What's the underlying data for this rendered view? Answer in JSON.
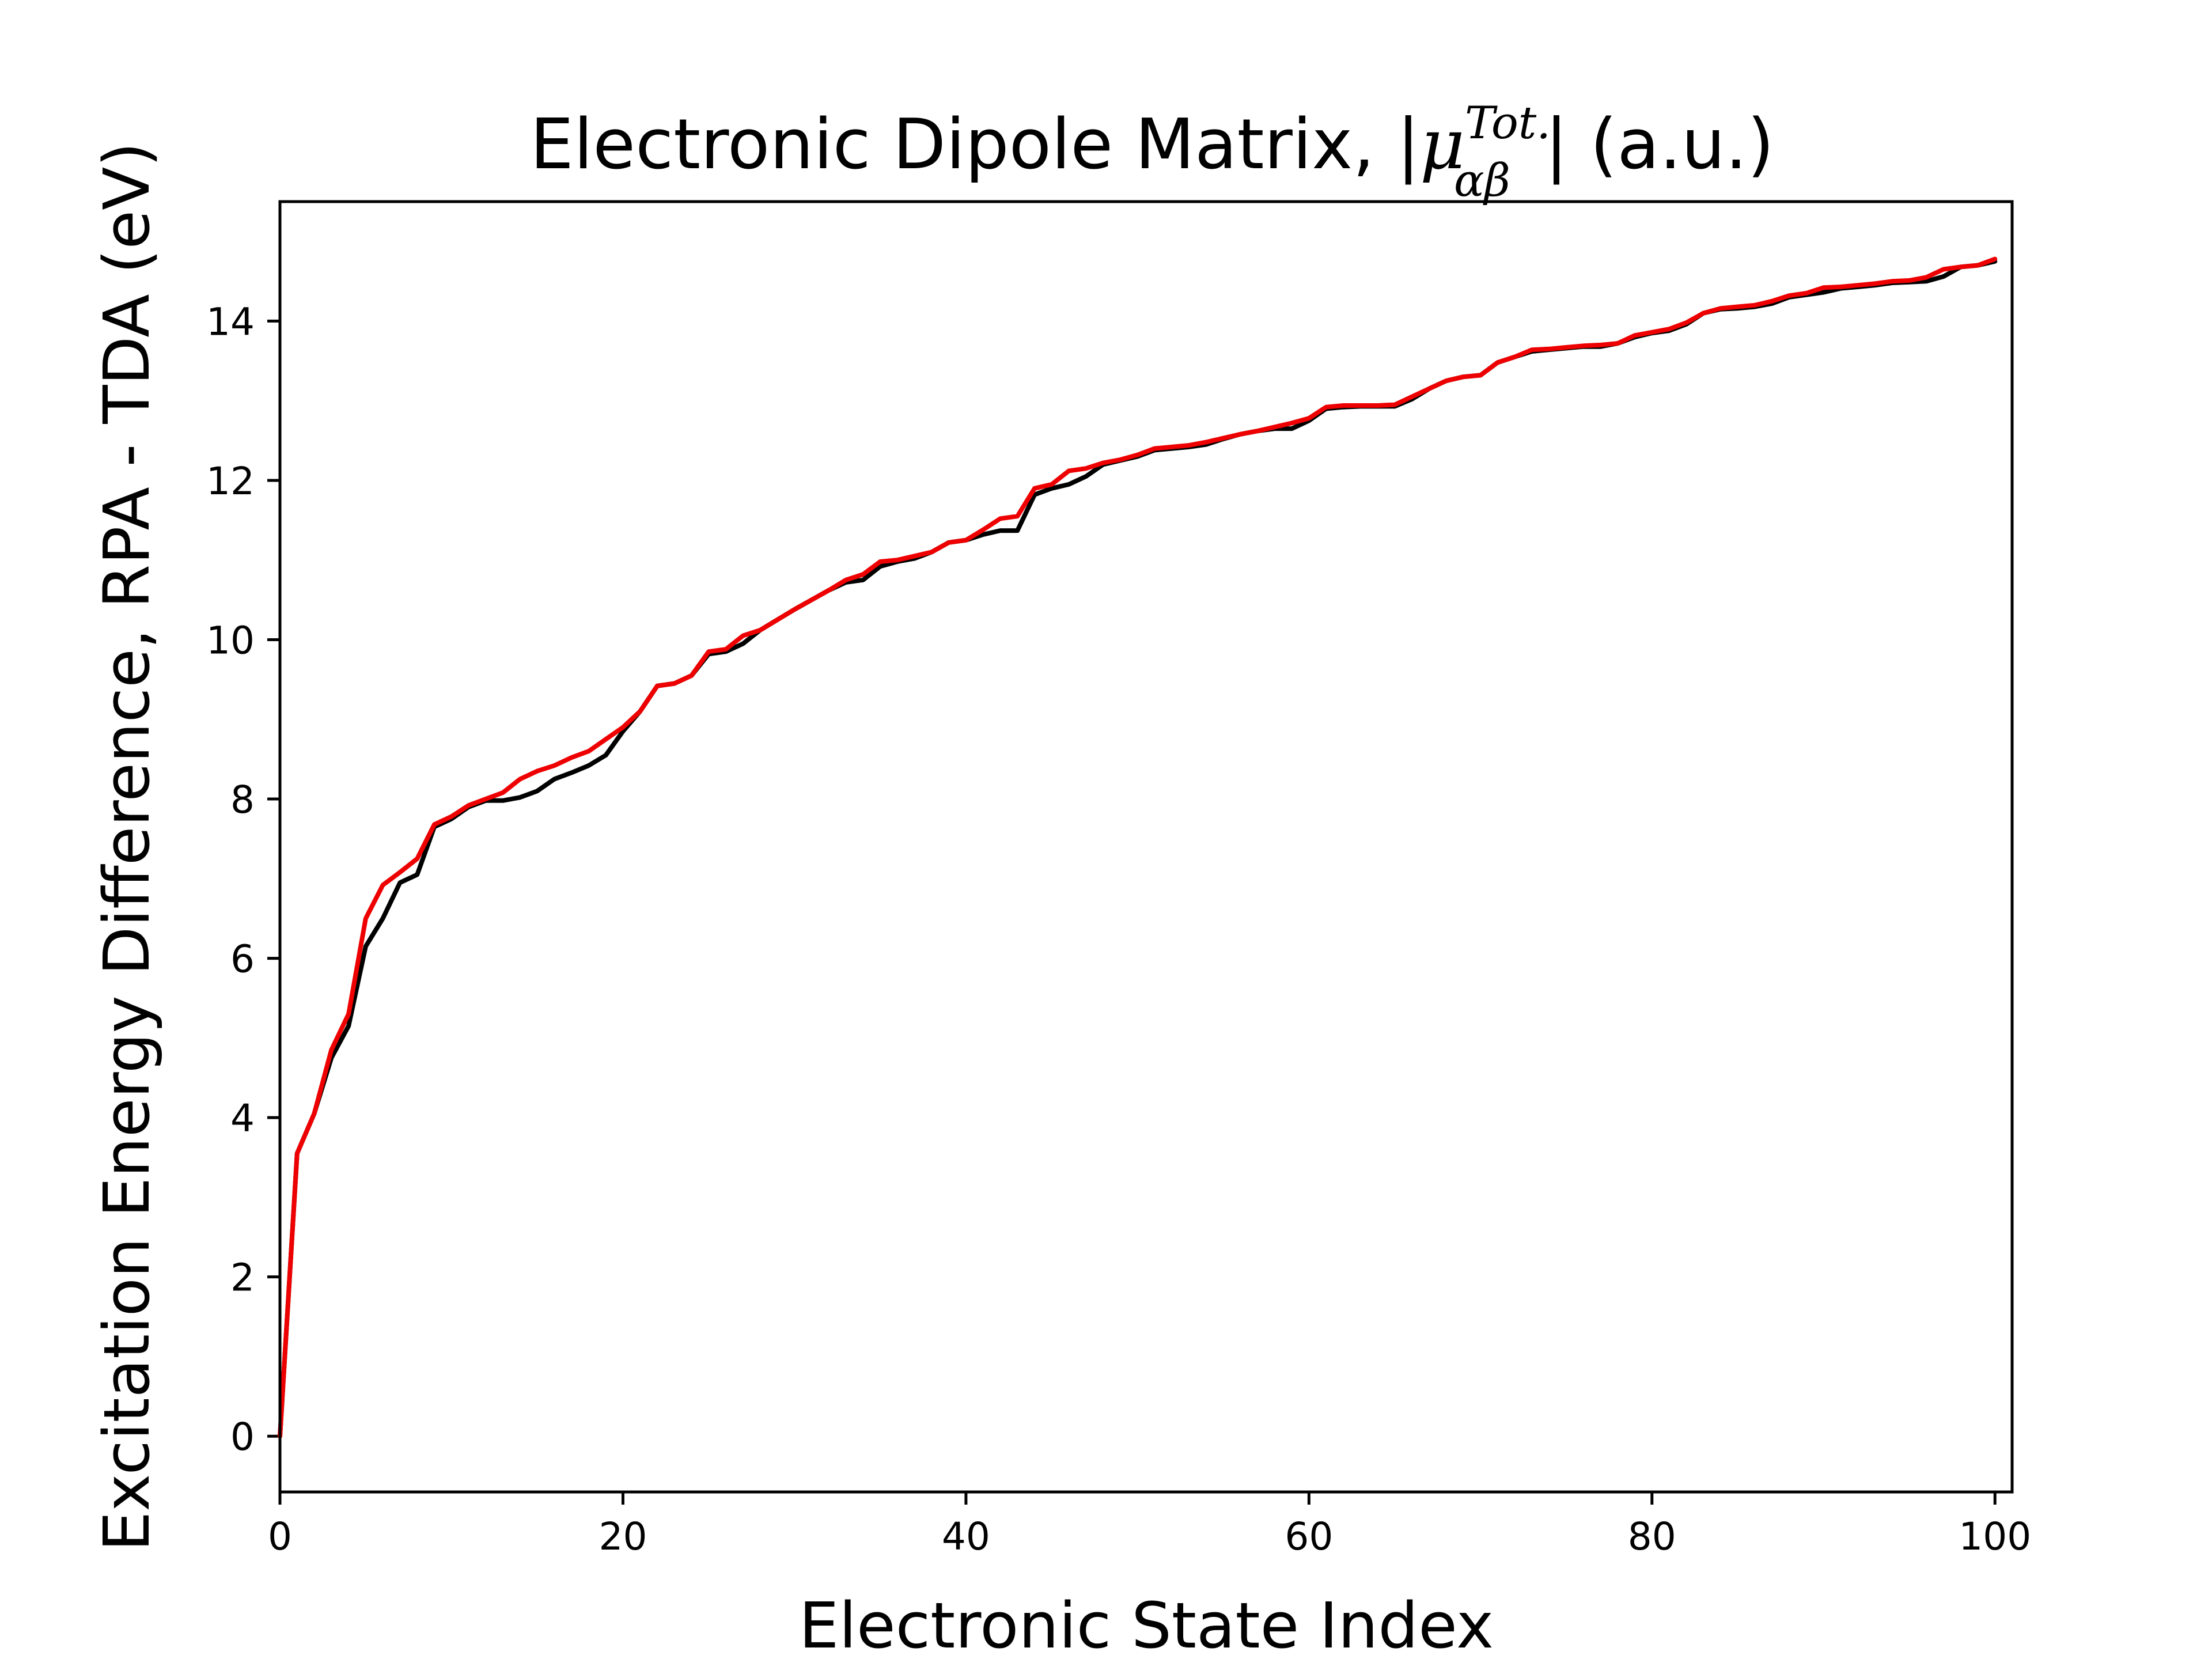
{
  "chart_data": {
    "type": "line",
    "title": {
      "prefix": "Electronic Dipole Matrix, |",
      "symbol": "μ",
      "superscript": "Tot.",
      "subscript": "αβ",
      "suffix": "| (a.u.)"
    },
    "xlabel": "Electronic State Index",
    "ylabel": "Excitation Energy Difference, RPA - TDA (eV)",
    "xlim": [
      0,
      101
    ],
    "ylim": [
      -0.7,
      15.5
    ],
    "xticks": [
      0,
      20,
      40,
      60,
      80,
      100
    ],
    "yticks": [
      0,
      2,
      4,
      6,
      8,
      10,
      12,
      14
    ],
    "grid": false,
    "legend": "none",
    "series": [
      {
        "color": "#000000",
        "x": [
          0,
          1,
          2,
          3,
          4,
          5,
          6,
          7,
          8,
          9,
          10,
          11,
          12,
          13,
          14,
          15,
          16,
          17,
          18,
          19,
          20,
          21,
          22,
          23,
          24,
          25,
          26,
          27,
          28,
          29,
          30,
          31,
          32,
          33,
          34,
          35,
          36,
          37,
          38,
          39,
          40,
          41,
          42,
          43,
          44,
          45,
          46,
          47,
          48,
          49,
          50,
          51,
          52,
          53,
          54,
          55,
          56,
          57,
          58,
          59,
          60,
          61,
          62,
          63,
          64,
          65,
          66,
          67,
          68,
          69,
          70,
          71,
          72,
          73,
          74,
          75,
          76,
          77,
          78,
          79,
          80,
          81,
          82,
          83,
          84,
          85,
          86,
          87,
          88,
          89,
          90,
          91,
          92,
          93,
          94,
          95,
          96,
          97,
          98,
          99,
          100
        ],
        "values": [
          0.0,
          3.55,
          4.05,
          4.75,
          5.15,
          6.15,
          6.5,
          6.95,
          7.05,
          7.65,
          7.75,
          7.9,
          7.98,
          7.98,
          8.02,
          8.1,
          8.25,
          8.33,
          8.42,
          8.55,
          8.85,
          9.1,
          9.42,
          9.45,
          9.55,
          9.82,
          9.85,
          9.95,
          10.12,
          10.25,
          10.38,
          10.5,
          10.62,
          10.72,
          10.75,
          10.92,
          10.98,
          11.02,
          11.1,
          11.22,
          11.25,
          11.32,
          11.37,
          11.37,
          11.82,
          11.9,
          11.95,
          12.05,
          12.2,
          12.25,
          12.3,
          12.38,
          12.4,
          12.42,
          12.45,
          12.52,
          12.58,
          12.62,
          12.65,
          12.65,
          12.75,
          12.9,
          12.92,
          12.93,
          12.93,
          12.93,
          13.02,
          13.15,
          13.25,
          13.3,
          13.32,
          13.48,
          13.55,
          13.62,
          13.64,
          13.66,
          13.68,
          13.68,
          13.72,
          13.8,
          13.85,
          13.88,
          13.96,
          14.1,
          14.15,
          14.16,
          14.18,
          14.22,
          14.3,
          14.33,
          14.36,
          14.41,
          14.43,
          14.45,
          14.48,
          14.49,
          14.5,
          14.56,
          14.68,
          14.7,
          14.75
        ]
      },
      {
        "color": "#ee0000",
        "x": [
          0,
          1,
          2,
          3,
          4,
          5,
          6,
          7,
          8,
          9,
          10,
          11,
          12,
          13,
          14,
          15,
          16,
          17,
          18,
          19,
          20,
          21,
          22,
          23,
          24,
          25,
          26,
          27,
          28,
          29,
          30,
          31,
          32,
          33,
          34,
          35,
          36,
          37,
          38,
          39,
          40,
          41,
          42,
          43,
          44,
          45,
          46,
          47,
          48,
          49,
          50,
          51,
          52,
          53,
          54,
          55,
          56,
          57,
          58,
          59,
          60,
          61,
          62,
          63,
          64,
          65,
          66,
          67,
          68,
          69,
          70,
          71,
          72,
          73,
          74,
          75,
          76,
          77,
          78,
          79,
          80,
          81,
          82,
          83,
          84,
          85,
          86,
          87,
          88,
          89,
          90,
          91,
          92,
          93,
          94,
          95,
          96,
          97,
          98,
          99,
          100
        ],
        "values": [
          0.0,
          3.55,
          4.05,
          4.85,
          5.3,
          6.5,
          6.92,
          7.08,
          7.25,
          7.68,
          7.78,
          7.92,
          8.0,
          8.08,
          8.25,
          8.35,
          8.42,
          8.52,
          8.6,
          8.75,
          8.9,
          9.1,
          9.42,
          9.45,
          9.55,
          9.85,
          9.88,
          10.05,
          10.12,
          10.25,
          10.38,
          10.5,
          10.62,
          10.75,
          10.82,
          10.98,
          11.0,
          11.05,
          11.1,
          11.22,
          11.25,
          11.38,
          11.52,
          11.55,
          11.9,
          11.95,
          12.12,
          12.15,
          12.22,
          12.26,
          12.32,
          12.4,
          12.42,
          12.44,
          12.48,
          12.53,
          12.58,
          12.62,
          12.67,
          12.72,
          12.78,
          12.92,
          12.94,
          12.94,
          12.94,
          12.95,
          13.05,
          13.15,
          13.25,
          13.3,
          13.32,
          13.48,
          13.55,
          13.64,
          13.65,
          13.67,
          13.69,
          13.7,
          13.72,
          13.82,
          13.86,
          13.9,
          13.98,
          14.1,
          14.16,
          14.18,
          14.2,
          14.25,
          14.32,
          14.35,
          14.42,
          14.43,
          14.45,
          14.47,
          14.5,
          14.51,
          14.55,
          14.65,
          14.68,
          14.7,
          14.78
        ]
      }
    ]
  }
}
